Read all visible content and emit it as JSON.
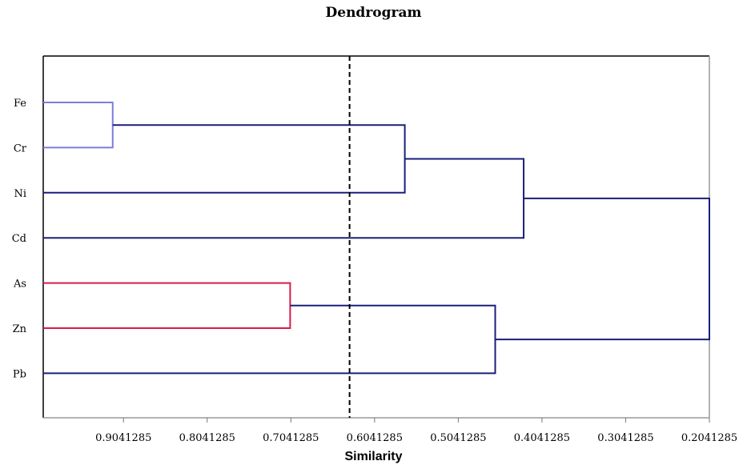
{
  "chart_data": {
    "type": "dendrogram",
    "title": "Dendrogram",
    "xlabel": "Similarity",
    "ylabel": "",
    "x_axis": {
      "reversed": true,
      "range": [
        1.0,
        0.2041285
      ],
      "ticks": [
        "0.9041285",
        "0.8041285",
        "0.7041285",
        "0.6041285",
        "0.5041285",
        "0.4041285",
        "0.3041285",
        "0.2041285"
      ]
    },
    "leaves": [
      "Fe",
      "Cr",
      "Ni",
      "Cd",
      "As",
      "Zn",
      "Pb"
    ],
    "merges": [
      {
        "id": "c1",
        "left": "Fe",
        "right": "Cr",
        "similarity": 0.917,
        "color": "#7b7fd8"
      },
      {
        "id": "c2",
        "left": "As",
        "right": "Zn",
        "similarity": 0.705,
        "color": "#d81b4a"
      },
      {
        "id": "c3",
        "left": "c1",
        "right": "Ni",
        "similarity": 0.568,
        "color": "#1a1f7a"
      },
      {
        "id": "c4",
        "left": "c3",
        "right": "Cd",
        "similarity": 0.426,
        "color": "#1a1f7a"
      },
      {
        "id": "c5",
        "left": "c2",
        "right": "Pb",
        "similarity": 0.46,
        "color": "#1a1f7a"
      },
      {
        "id": "c6",
        "left": "c4",
        "right": "c5",
        "similarity": 0.2041285,
        "color": "#1a1f7a"
      }
    ],
    "cutoff_line": {
      "similarity": 0.634,
      "style": "dashed"
    },
    "grid": false,
    "legend": "none"
  }
}
